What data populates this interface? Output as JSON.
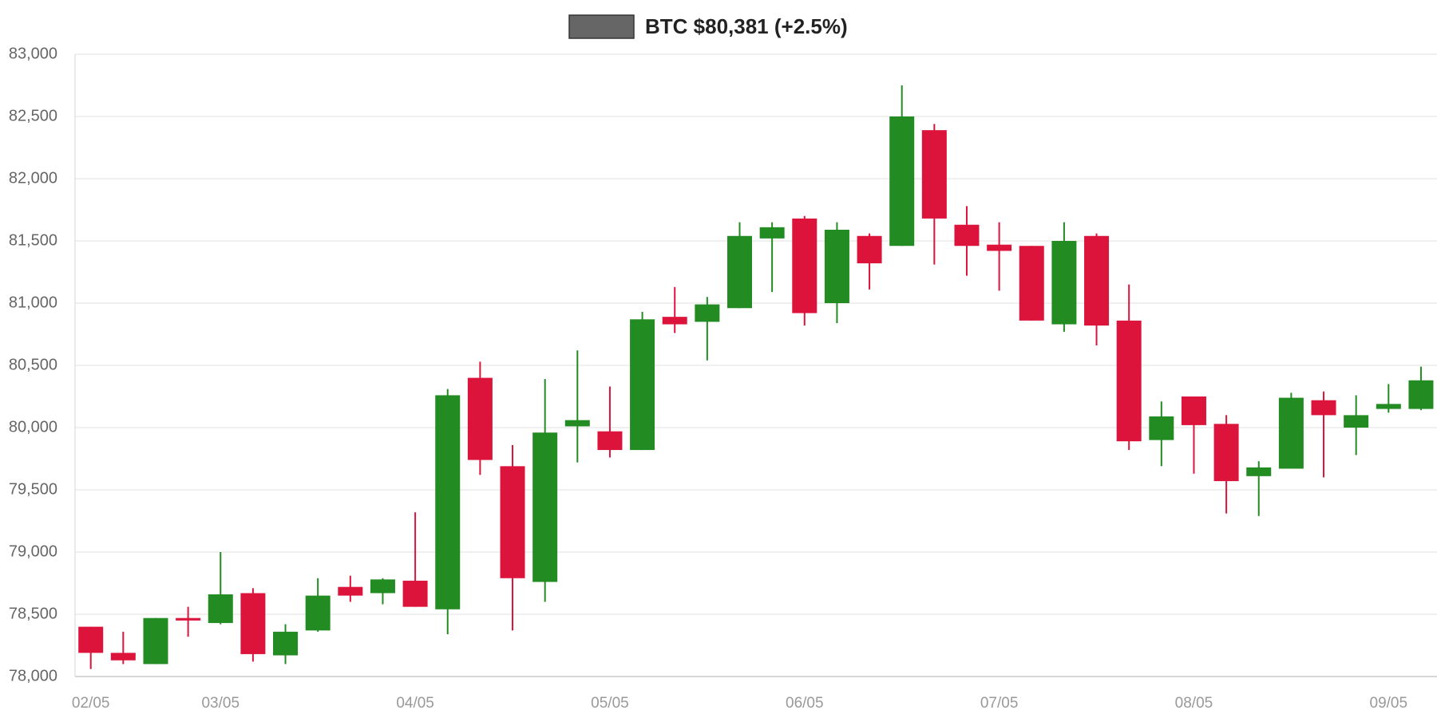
{
  "chart_data": {
    "type": "candlestick",
    "categories": [
      "02/05",
      null,
      null,
      null,
      "03/05",
      null,
      null,
      null,
      null,
      null,
      "04/05",
      null,
      null,
      null,
      null,
      null,
      "05/05",
      null,
      null,
      null,
      null,
      null,
      "06/05",
      null,
      null,
      null,
      null,
      null,
      "07/05",
      null,
      null,
      null,
      null,
      null,
      "08/05",
      null,
      null,
      null,
      null,
      null,
      "09/05",
      null
    ],
    "series": [
      {
        "name": "BTC $80,381 (+2.5%)",
        "color": "#666666",
        "open": [
          78400,
          78190,
          78100,
          78470,
          78430,
          78670,
          78170,
          78370,
          78720,
          78670,
          78770,
          78540,
          80400,
          79690,
          78760,
          80010,
          79970,
          79820,
          80890,
          80850,
          80960,
          81520,
          81680,
          81000,
          81540,
          81460,
          82390,
          81630,
          81470,
          81460,
          80830,
          81540,
          80860,
          79900,
          80250,
          80030,
          79610,
          79670,
          80220,
          80000,
          80150,
          80150
        ],
        "high": [
          78400,
          78360,
          78470,
          78560,
          79000,
          78710,
          78420,
          78790,
          78810,
          78790,
          79320,
          80310,
          80530,
          79860,
          80390,
          80620,
          80330,
          80930,
          81130,
          81050,
          81650,
          81650,
          81700,
          81650,
          81560,
          82750,
          82440,
          81780,
          81650,
          81460,
          81650,
          81560,
          81150,
          80210,
          80250,
          80100,
          79730,
          80280,
          80290,
          80260,
          80350,
          80490
        ],
        "low": [
          78060,
          78100,
          78100,
          78320,
          78420,
          78120,
          78100,
          78360,
          78600,
          78580,
          78560,
          78340,
          79620,
          78370,
          78600,
          79720,
          79760,
          79820,
          80760,
          80540,
          80960,
          81090,
          80820,
          80840,
          81110,
          81460,
          81310,
          81220,
          81100,
          80860,
          80770,
          80660,
          79820,
          79690,
          79630,
          79310,
          79290,
          79670,
          79600,
          79780,
          80120,
          80140
        ],
        "close": [
          78190,
          78130,
          78470,
          78450,
          78660,
          78180,
          78360,
          78650,
          78650,
          78780,
          78560,
          80260,
          79740,
          78790,
          79960,
          80060,
          79820,
          80870,
          80830,
          80990,
          81540,
          81610,
          80920,
          81590,
          81320,
          82500,
          81680,
          81460,
          81420,
          80860,
          81500,
          80820,
          79890,
          80090,
          80020,
          79570,
          79680,
          80240,
          80100,
          80100,
          80190,
          80380
        ]
      }
    ],
    "up_color": "#228b22",
    "down_color": "#dc143c",
    "ylim": [
      78000,
      83000
    ],
    "yticks": [
      {
        "value": 78000,
        "label": "78,000"
      },
      {
        "value": 78500,
        "label": "78,500"
      },
      {
        "value": 79000,
        "label": "79,000"
      },
      {
        "value": 79500,
        "label": "79,500"
      },
      {
        "value": 80000,
        "label": "80,000"
      },
      {
        "value": 80500,
        "label": "80,500"
      },
      {
        "value": 81000,
        "label": "81,000"
      },
      {
        "value": 81500,
        "label": "81,500"
      },
      {
        "value": 82000,
        "label": "82,000"
      },
      {
        "value": 82500,
        "label": "82,500"
      },
      {
        "value": 83000,
        "label": "83,000"
      }
    ],
    "grid": true
  }
}
